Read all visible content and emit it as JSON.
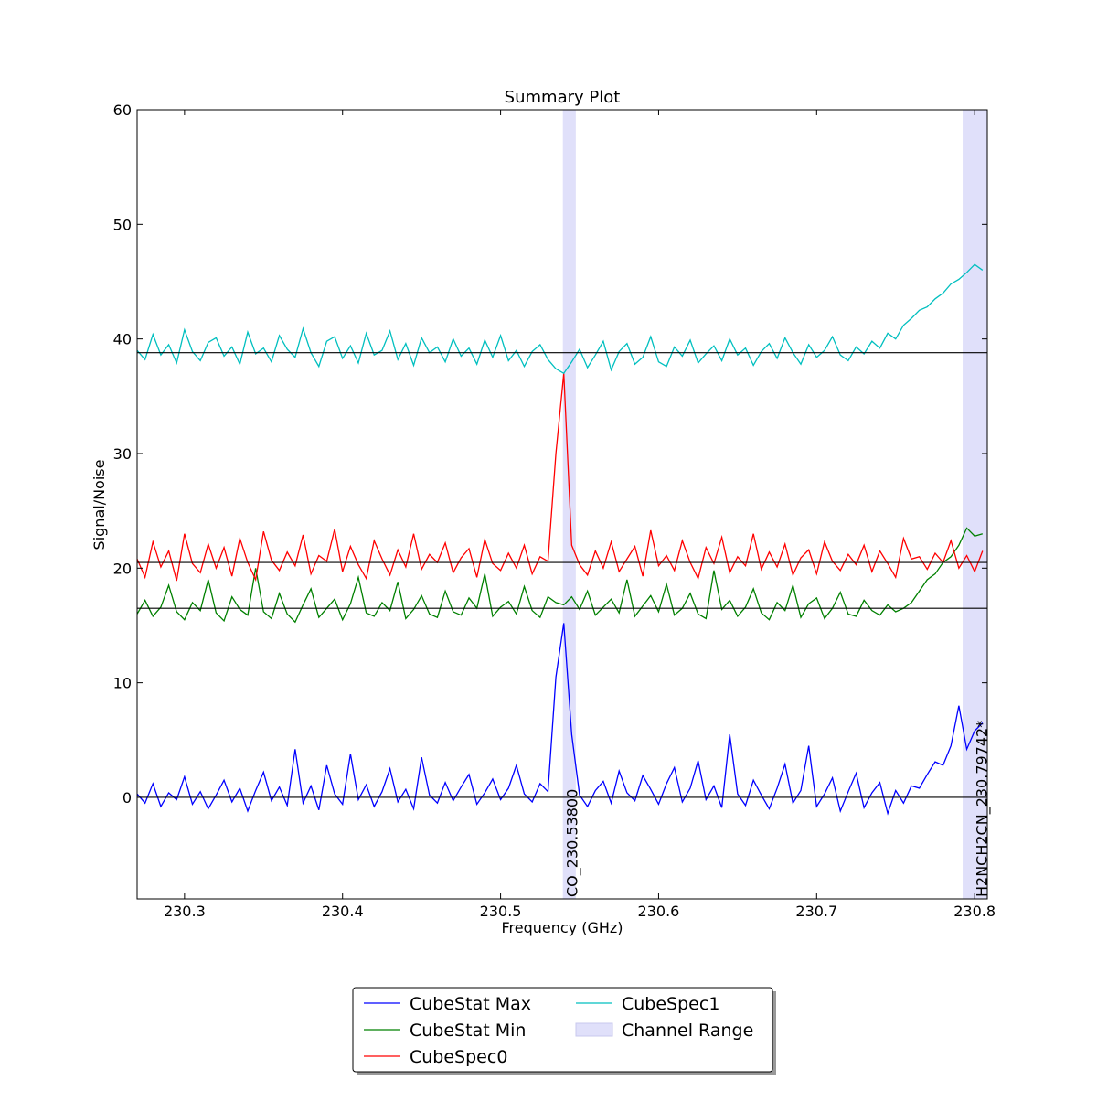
{
  "chart_data": {
    "type": "line",
    "title": "Summary Plot",
    "xlabel": "Frequency (GHz)",
    "ylabel": "Signal/Noise",
    "xlim": [
      230.27,
      230.808
    ],
    "ylim": [
      -8.86,
      60
    ],
    "xticks": [
      230.3,
      230.4,
      230.5,
      230.6,
      230.7,
      230.8
    ],
    "yticks": [
      0,
      10,
      20,
      30,
      40,
      50,
      60
    ],
    "hlines": [
      0,
      16.5,
      20.5,
      38.8
    ],
    "channel_range_label": "Channel Range",
    "channel_range_color": "#e0e0fa",
    "channel_ranges": [
      [
        230.5394,
        230.5476
      ],
      [
        230.7924,
        230.808
      ]
    ],
    "line_ids": [
      {
        "label": "CO_230.53800",
        "x": 230.538
      },
      {
        "label": "H2NCH2CN_230.79742*",
        "x": 230.79742
      }
    ],
    "x": [
      230.27,
      230.275,
      230.28,
      230.285,
      230.29,
      230.295,
      230.3,
      230.305,
      230.31,
      230.315,
      230.32,
      230.325,
      230.33,
      230.335,
      230.34,
      230.345,
      230.35,
      230.355,
      230.36,
      230.365,
      230.37,
      230.375,
      230.38,
      230.385,
      230.39,
      230.395,
      230.4,
      230.405,
      230.41,
      230.415,
      230.42,
      230.425,
      230.43,
      230.435,
      230.44,
      230.445,
      230.45,
      230.455,
      230.46,
      230.465,
      230.47,
      230.475,
      230.48,
      230.485,
      230.49,
      230.495,
      230.5,
      230.505,
      230.51,
      230.515,
      230.52,
      230.525,
      230.53,
      230.535,
      230.54,
      230.545,
      230.55,
      230.555,
      230.56,
      230.565,
      230.57,
      230.575,
      230.58,
      230.585,
      230.59,
      230.595,
      230.6,
      230.605,
      230.61,
      230.615,
      230.62,
      230.625,
      230.63,
      230.635,
      230.64,
      230.645,
      230.65,
      230.655,
      230.66,
      230.665,
      230.67,
      230.675,
      230.68,
      230.685,
      230.69,
      230.695,
      230.7,
      230.705,
      230.71,
      230.715,
      230.72,
      230.725,
      230.73,
      230.735,
      230.74,
      230.745,
      230.75,
      230.755,
      230.76,
      230.765,
      230.77,
      230.775,
      230.78,
      230.785,
      230.79,
      230.795,
      230.8,
      230.805
    ],
    "series": [
      {
        "name": "CubeStat Max",
        "color": "#0000ff",
        "values": [
          0.3,
          -0.5,
          1.2,
          -0.8,
          0.4,
          -0.2,
          1.8,
          -0.6,
          0.5,
          -1.0,
          0.2,
          1.5,
          -0.4,
          0.8,
          -1.2,
          0.6,
          2.2,
          -0.3,
          0.9,
          -0.7,
          4.2,
          -0.5,
          1.0,
          -1.1,
          2.8,
          0.3,
          -0.6,
          3.8,
          -0.2,
          1.1,
          -0.8,
          0.5,
          2.5,
          -0.4,
          0.7,
          -1.0,
          3.5,
          0.2,
          -0.5,
          1.3,
          -0.3,
          0.9,
          2.0,
          -0.6,
          0.4,
          1.6,
          -0.2,
          0.8,
          2.8,
          0.3,
          -0.4,
          1.2,
          0.5,
          10.5,
          15.2,
          5.5,
          0.2,
          -0.8,
          0.6,
          1.4,
          -0.5,
          2.3,
          0.4,
          -0.3,
          1.9,
          0.7,
          -0.6,
          1.2,
          2.6,
          -0.4,
          0.8,
          3.2,
          -0.2,
          1.0,
          -0.9,
          5.5,
          0.3,
          -0.7,
          1.5,
          0.2,
          -1.0,
          0.8,
          2.9,
          -0.5,
          0.6,
          4.5,
          -0.8,
          0.3,
          1.7,
          -1.2,
          0.5,
          2.1,
          -0.9,
          0.4,
          1.3,
          -1.4,
          0.6,
          -0.5,
          1.0,
          0.8,
          2.0,
          3.1,
          2.8,
          4.5,
          8.0,
          4.2,
          5.8,
          6.5
        ]
      },
      {
        "name": "CubeStat Min",
        "color": "#008000",
        "values": [
          16.0,
          17.2,
          15.8,
          16.6,
          18.5,
          16.2,
          15.5,
          17.0,
          16.3,
          19.0,
          16.1,
          15.4,
          17.5,
          16.4,
          15.9,
          20.0,
          16.2,
          15.6,
          17.8,
          16.0,
          15.3,
          16.8,
          18.2,
          15.7,
          16.5,
          17.3,
          15.5,
          16.9,
          19.2,
          16.1,
          15.8,
          17.0,
          16.3,
          18.8,
          15.6,
          16.4,
          17.6,
          16.0,
          15.7,
          18.0,
          16.2,
          15.9,
          17.4,
          16.5,
          19.5,
          15.8,
          16.6,
          17.1,
          16.0,
          18.4,
          16.3,
          15.7,
          17.5,
          17.0,
          16.8,
          17.5,
          16.4,
          18.0,
          15.9,
          16.6,
          17.3,
          16.1,
          19.0,
          15.8,
          16.7,
          17.6,
          16.2,
          18.6,
          15.9,
          16.5,
          17.8,
          16.0,
          15.6,
          19.8,
          16.4,
          17.2,
          15.8,
          16.6,
          18.2,
          16.1,
          15.5,
          17.0,
          16.3,
          18.5,
          15.7,
          16.9,
          17.4,
          15.6,
          16.5,
          17.9,
          16.0,
          15.8,
          17.2,
          16.3,
          15.9,
          16.8,
          16.2,
          16.5,
          17.0,
          18.0,
          19.0,
          19.5,
          20.5,
          21.0,
          22.0,
          23.5,
          22.8,
          23.0
        ]
      },
      {
        "name": "CubeSpec0",
        "color": "#ff0000",
        "values": [
          20.8,
          19.2,
          22.3,
          20.1,
          21.5,
          18.9,
          23.0,
          20.4,
          19.6,
          22.1,
          20.0,
          21.8,
          19.3,
          22.6,
          20.5,
          19.0,
          23.2,
          20.7,
          19.8,
          21.4,
          20.2,
          22.9,
          19.5,
          21.1,
          20.6,
          23.4,
          19.7,
          21.9,
          20.3,
          19.1,
          22.4,
          20.8,
          19.4,
          21.6,
          20.1,
          23.0,
          19.9,
          21.2,
          20.5,
          22.2,
          19.6,
          20.9,
          21.7,
          19.2,
          22.5,
          20.4,
          19.8,
          21.3,
          20.0,
          22.0,
          19.5,
          21.0,
          20.6,
          30.0,
          37.0,
          22.0,
          20.3,
          19.4,
          21.5,
          20.0,
          22.3,
          19.7,
          20.8,
          21.9,
          19.3,
          23.3,
          20.2,
          21.1,
          19.8,
          22.4,
          20.5,
          19.1,
          21.8,
          20.4,
          22.7,
          19.6,
          21.0,
          20.2,
          23.0,
          19.9,
          21.4,
          20.1,
          22.1,
          19.4,
          20.9,
          21.6,
          19.5,
          22.3,
          20.6,
          19.8,
          21.2,
          20.3,
          22.0,
          19.7,
          21.5,
          20.4,
          19.2,
          22.6,
          20.8,
          21.0,
          19.9,
          21.3,
          20.5,
          22.4,
          20.0,
          21.1,
          19.7,
          21.5
        ]
      },
      {
        "name": "CubeSpec1",
        "color": "#00bfbf",
        "values": [
          39.0,
          38.2,
          40.4,
          38.6,
          39.5,
          37.9,
          40.8,
          38.9,
          38.1,
          39.7,
          40.1,
          38.5,
          39.3,
          37.8,
          40.6,
          38.7,
          39.2,
          38.0,
          40.3,
          39.1,
          38.4,
          40.9,
          38.8,
          37.6,
          39.8,
          40.2,
          38.3,
          39.4,
          37.9,
          40.5,
          38.6,
          39.0,
          40.7,
          38.2,
          39.6,
          37.7,
          40.1,
          38.8,
          39.3,
          38.0,
          40.0,
          38.5,
          39.2,
          37.8,
          39.9,
          38.4,
          40.3,
          38.1,
          39.0,
          37.6,
          38.9,
          39.5,
          38.2,
          37.4,
          37.0,
          38.0,
          39.1,
          37.5,
          38.6,
          39.8,
          37.3,
          38.9,
          39.6,
          37.8,
          38.4,
          40.2,
          38.0,
          37.6,
          39.3,
          38.5,
          39.9,
          37.9,
          38.7,
          39.4,
          38.1,
          40.0,
          38.6,
          39.2,
          37.7,
          38.9,
          39.6,
          38.3,
          40.1,
          38.8,
          37.8,
          39.5,
          38.4,
          39.0,
          40.2,
          38.6,
          38.1,
          39.3,
          38.7,
          39.8,
          39.2,
          40.5,
          40.0,
          41.2,
          41.8,
          42.5,
          42.8,
          43.5,
          44.0,
          44.8,
          45.2,
          45.8,
          46.5,
          46.0
        ]
      }
    ]
  }
}
